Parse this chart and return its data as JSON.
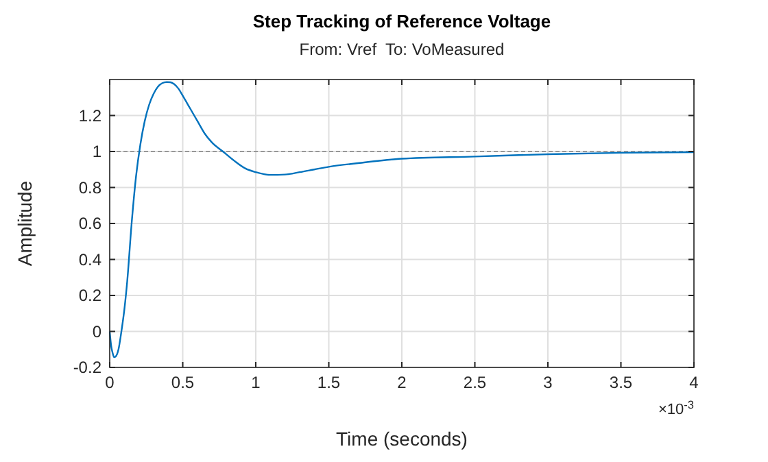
{
  "chart_data": {
    "type": "line",
    "title": "Step Tracking of Reference Voltage",
    "subtitle": "From: Vref  To: VoMeasured",
    "xlabel": "Time (seconds)",
    "ylabel": "Amplitude",
    "x": [
      0,
      0.01,
      0.02,
      0.03,
      0.04,
      0.06,
      0.08,
      0.1,
      0.12,
      0.15,
      0.18,
      0.21,
      0.24,
      0.27,
      0.3,
      0.33,
      0.36,
      0.39,
      0.415,
      0.44,
      0.47,
      0.5,
      0.55,
      0.6,
      0.65,
      0.7,
      0.775,
      0.85,
      0.93,
      1,
      1.1,
      1.2,
      1.3,
      1.4,
      1.5,
      1.7,
      2,
      2.5,
      3,
      3.5,
      4
    ],
    "series": [
      {
        "color": "#0072bd",
        "values": [
          0,
          -0.08,
          -0.12,
          -0.143,
          -0.14,
          -0.1,
          0.0,
          0.12,
          0.28,
          0.6,
          0.86,
          1.04,
          1.17,
          1.26,
          1.32,
          1.36,
          1.38,
          1.386,
          1.385,
          1.375,
          1.35,
          1.31,
          1.24,
          1.17,
          1.1,
          1.05,
          1.0,
          0.95,
          0.905,
          0.885,
          0.87,
          0.872,
          0.885,
          0.9,
          0.915,
          0.935,
          0.96,
          0.972,
          0.985,
          0.993,
          0.996
        ]
      }
    ],
    "xlim": [
      0,
      4
    ],
    "xticks": [
      0,
      0.5,
      1,
      1.5,
      2,
      2.5,
      3,
      3.5,
      4
    ],
    "ylim": [
      -0.2,
      1.4
    ],
    "yticks": [
      -0.2,
      0,
      0.2,
      0.4,
      0.6,
      0.8,
      1,
      1.2
    ],
    "annotations": [
      "×10$^{-3}$"
    ],
    "ref_lines": [
      {
        "axis": "y",
        "value": 1,
        "color": "#808080",
        "line_style": "dashed"
      }
    ],
    "grid": true,
    "line_style": "solid",
    "marker": "none"
  }
}
